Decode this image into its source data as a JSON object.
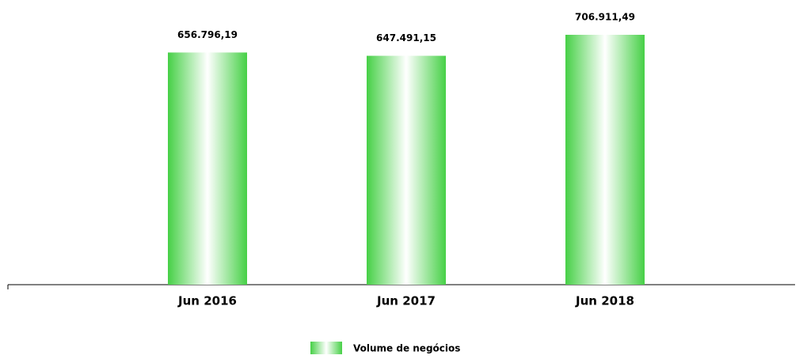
{
  "chart_data": {
    "type": "bar",
    "categories": [
      "Jun 2016",
      "Jun 2017",
      "Jun 2018"
    ],
    "series": [
      {
        "name": "Volume de negócios",
        "color": "#46d046",
        "values": [
          656796.19,
          647491.15,
          706911.49
        ],
        "value_labels": [
          "656.796,19",
          "647.491,15",
          "706.911,49"
        ]
      }
    ],
    "legend": "bottom"
  }
}
